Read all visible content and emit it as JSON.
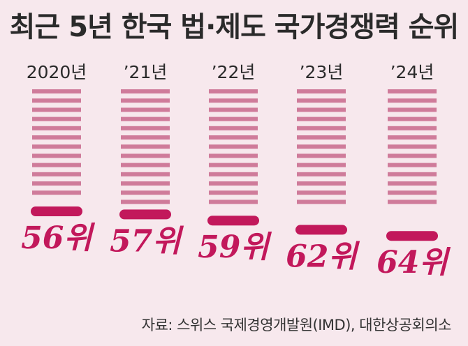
{
  "chart_data": {
    "type": "bar",
    "title": "최근 5년 한국 법·제도 국가경쟁력 순위",
    "categories": [
      "2020년",
      "’21년",
      "’22년",
      "’23년",
      "’24년"
    ],
    "values": [
      56,
      57,
      59,
      62,
      64
    ],
    "value_suffix": "위",
    "value_labels": [
      "56위",
      "57위",
      "59위",
      "62위",
      "64위"
    ],
    "source": "자료: 스위스 국제경영개발원(IMD), 대한상공회의소",
    "colors": {
      "background": "#f7e8ed",
      "stripe": "#cf7b9a",
      "marker": "#c2185b",
      "label": "#c2185b",
      "text": "#2a2a2a"
    }
  }
}
